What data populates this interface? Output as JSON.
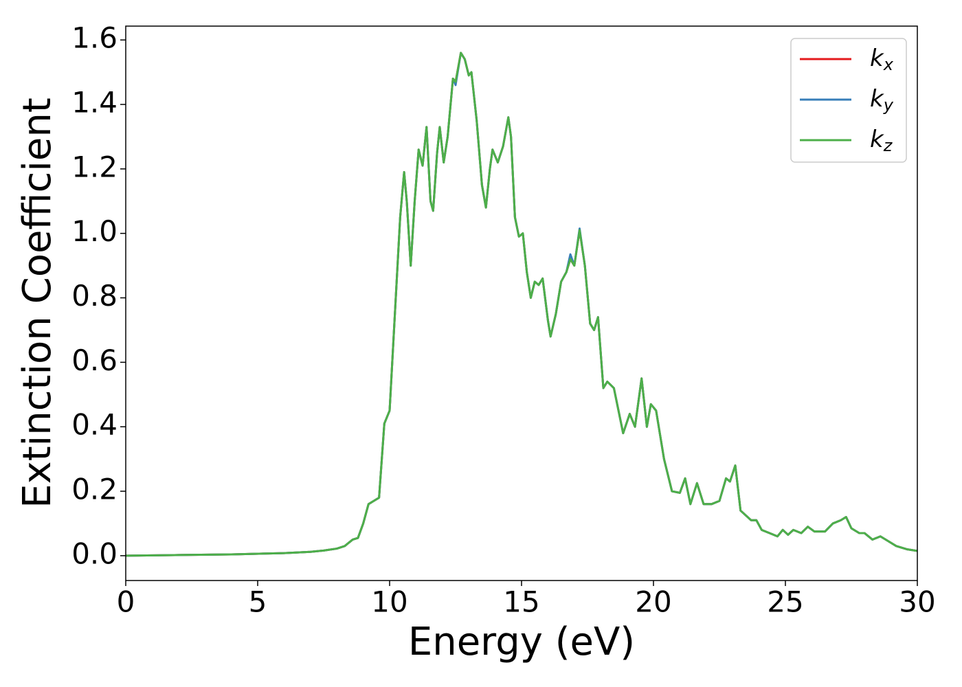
{
  "chart_data": {
    "type": "line",
    "xlabel": "Energy (eV)",
    "ylabel": "Extinction Coefficient",
    "xlim": [
      0,
      30
    ],
    "xticks": [
      0,
      5,
      10,
      15,
      20,
      25,
      30
    ],
    "ylim": [
      -0.077,
      1.643
    ],
    "yticks": [
      {
        "value": 0,
        "label": "0.0"
      },
      {
        "value": 0.2,
        "label": "0.2"
      },
      {
        "value": 0.4,
        "label": "0.4"
      },
      {
        "value": 0.6,
        "label": "0.6"
      },
      {
        "value": 0.8,
        "label": "0.8"
      },
      {
        "value": 1.0,
        "label": "1.0"
      },
      {
        "value": 1.2,
        "label": "1.2"
      },
      {
        "value": 1.4,
        "label": "1.4"
      },
      {
        "value": 1.6,
        "label": "1.6"
      }
    ],
    "grid": false,
    "legend": "upper right",
    "x": [
      0,
      2,
      4,
      6,
      7,
      7.5,
      8,
      8.3,
      8.6,
      8.8,
      9,
      9.2,
      9.4,
      9.6,
      9.8,
      10,
      10.2,
      10.4,
      10.55,
      10.65,
      10.8,
      10.95,
      11.1,
      11.25,
      11.4,
      11.55,
      11.65,
      11.8,
      11.9,
      12.05,
      12.2,
      12.4,
      12.5,
      12.7,
      12.85,
      13,
      13.1,
      13.3,
      13.5,
      13.65,
      13.8,
      13.9,
      14.1,
      14.3,
      14.5,
      14.6,
      14.75,
      14.9,
      15.05,
      15.2,
      15.35,
      15.5,
      15.65,
      15.8,
      16,
      16.1,
      16.3,
      16.5,
      16.7,
      16.85,
      17,
      17.2,
      17.4,
      17.6,
      17.75,
      17.9,
      18.1,
      18.25,
      18.5,
      18.85,
      19.1,
      19.3,
      19.55,
      19.75,
      19.9,
      20.1,
      20.4,
      20.7,
      21,
      21.2,
      21.4,
      21.65,
      21.9,
      22.2,
      22.5,
      22.75,
      22.9,
      23.1,
      23.3,
      23.7,
      23.9,
      24.1,
      24.4,
      24.7,
      24.9,
      25.1,
      25.3,
      25.6,
      25.85,
      26.1,
      26.5,
      26.8,
      27.1,
      27.3,
      27.5,
      27.8,
      28,
      28.3,
      28.6,
      28.9,
      29.2,
      29.6,
      30
    ],
    "series": [
      {
        "name": "kx",
        "color": "#e41a1c",
        "values": [
          0,
          0.002,
          0.004,
          0.008,
          0.012,
          0.016,
          0.022,
          0.03,
          0.05,
          0.055,
          0.1,
          0.16,
          0.17,
          0.18,
          0.41,
          0.45,
          0.75,
          1.05,
          1.19,
          1.1,
          0.9,
          1.1,
          1.26,
          1.21,
          1.33,
          1.1,
          1.07,
          1.25,
          1.33,
          1.22,
          1.3,
          1.48,
          1.47,
          1.56,
          1.54,
          1.49,
          1.5,
          1.35,
          1.15,
          1.08,
          1.2,
          1.26,
          1.22,
          1.27,
          1.36,
          1.3,
          1.05,
          0.99,
          1.0,
          0.88,
          0.8,
          0.85,
          0.84,
          0.86,
          0.73,
          0.68,
          0.75,
          0.85,
          0.88,
          0.92,
          0.9,
          1.01,
          0.9,
          0.72,
          0.7,
          0.74,
          0.52,
          0.54,
          0.52,
          0.38,
          0.44,
          0.4,
          0.55,
          0.4,
          0.47,
          0.45,
          0.3,
          0.2,
          0.195,
          0.24,
          0.16,
          0.225,
          0.16,
          0.16,
          0.17,
          0.24,
          0.23,
          0.28,
          0.14,
          0.11,
          0.11,
          0.08,
          0.07,
          0.06,
          0.08,
          0.065,
          0.08,
          0.07,
          0.09,
          0.075,
          0.075,
          0.1,
          0.11,
          0.12,
          0.085,
          0.07,
          0.07,
          0.05,
          0.06,
          0.045,
          0.03,
          0.02,
          0.015
        ]
      },
      {
        "name": "ky",
        "color": "#377eb8",
        "values": [
          0,
          0.002,
          0.004,
          0.008,
          0.012,
          0.016,
          0.022,
          0.03,
          0.05,
          0.055,
          0.1,
          0.16,
          0.17,
          0.18,
          0.41,
          0.45,
          0.75,
          1.05,
          1.19,
          1.1,
          0.9,
          1.1,
          1.26,
          1.21,
          1.33,
          1.1,
          1.07,
          1.25,
          1.33,
          1.22,
          1.3,
          1.48,
          1.46,
          1.56,
          1.54,
          1.49,
          1.5,
          1.35,
          1.15,
          1.08,
          1.2,
          1.26,
          1.22,
          1.27,
          1.36,
          1.3,
          1.05,
          0.99,
          1.0,
          0.88,
          0.8,
          0.85,
          0.84,
          0.86,
          0.73,
          0.68,
          0.75,
          0.85,
          0.88,
          0.935,
          0.9,
          1.015,
          0.9,
          0.72,
          0.7,
          0.74,
          0.52,
          0.54,
          0.52,
          0.38,
          0.44,
          0.4,
          0.55,
          0.4,
          0.47,
          0.45,
          0.3,
          0.2,
          0.195,
          0.24,
          0.16,
          0.225,
          0.16,
          0.16,
          0.17,
          0.24,
          0.23,
          0.28,
          0.14,
          0.11,
          0.11,
          0.08,
          0.07,
          0.06,
          0.08,
          0.065,
          0.08,
          0.07,
          0.09,
          0.075,
          0.075,
          0.1,
          0.11,
          0.12,
          0.085,
          0.07,
          0.07,
          0.05,
          0.06,
          0.045,
          0.03,
          0.02,
          0.015
        ]
      },
      {
        "name": "kz",
        "color": "#4daf4a",
        "values": [
          0,
          0.002,
          0.004,
          0.008,
          0.012,
          0.016,
          0.022,
          0.03,
          0.05,
          0.055,
          0.1,
          0.16,
          0.17,
          0.18,
          0.41,
          0.45,
          0.75,
          1.05,
          1.19,
          1.1,
          0.9,
          1.1,
          1.26,
          1.21,
          1.33,
          1.1,
          1.07,
          1.25,
          1.33,
          1.22,
          1.3,
          1.48,
          1.47,
          1.56,
          1.54,
          1.49,
          1.5,
          1.35,
          1.15,
          1.08,
          1.2,
          1.26,
          1.22,
          1.27,
          1.36,
          1.3,
          1.05,
          0.99,
          1.0,
          0.88,
          0.8,
          0.85,
          0.84,
          0.86,
          0.73,
          0.68,
          0.75,
          0.85,
          0.88,
          0.92,
          0.9,
          1.01,
          0.9,
          0.72,
          0.7,
          0.74,
          0.52,
          0.54,
          0.52,
          0.38,
          0.44,
          0.4,
          0.55,
          0.4,
          0.47,
          0.45,
          0.3,
          0.2,
          0.195,
          0.24,
          0.16,
          0.225,
          0.16,
          0.16,
          0.17,
          0.24,
          0.23,
          0.28,
          0.14,
          0.11,
          0.11,
          0.08,
          0.07,
          0.06,
          0.08,
          0.065,
          0.08,
          0.07,
          0.09,
          0.075,
          0.075,
          0.1,
          0.11,
          0.12,
          0.085,
          0.07,
          0.07,
          0.05,
          0.06,
          0.045,
          0.03,
          0.02,
          0.015
        ]
      }
    ]
  }
}
